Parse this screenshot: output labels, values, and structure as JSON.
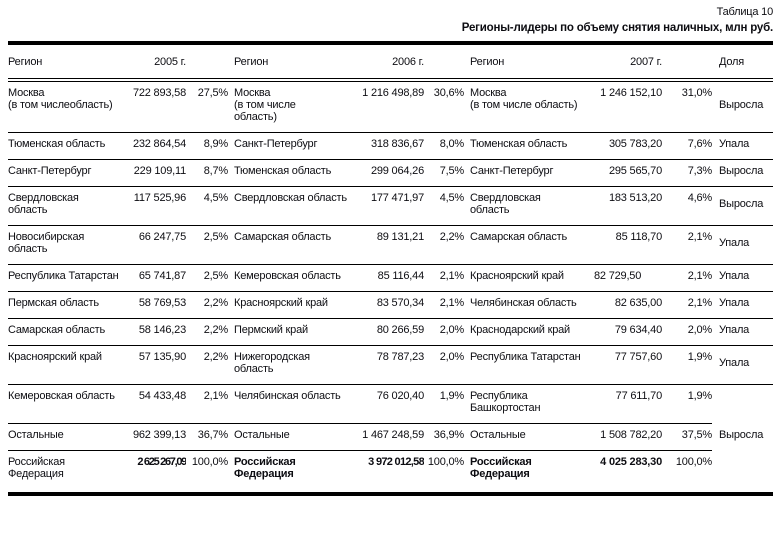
{
  "page": {
    "table_number": "Таблица 10",
    "table_title": "Регионы-лидеры по объему снятия наличных, млн руб."
  },
  "colors": {
    "text": "#0d0d12",
    "border": "#000000",
    "background": "#ffffff"
  },
  "table": {
    "headers": {
      "region1": "Регион",
      "year1": "2005 г.",
      "region2": "Регион",
      "year2": "2006 г.",
      "region3": "Регион",
      "year3": "2007 г.",
      "share": "Доля"
    },
    "rows": [
      {
        "r1": "Москва\n(в том числеобласть)",
        "v1": "722 893,58",
        "p1": "27,5%",
        "r2": "Москва\n(в том числе\nобласть)",
        "v2": "1 216 498,89",
        "p2": "30,6%",
        "r3": "Москва\n(в том числе область)",
        "v3": "1 246 152,10",
        "p3": "31,0%",
        "d": "Выросла"
      },
      {
        "r1": "Тюменская область",
        "v1": "232 864,54",
        "p1": "8,9%",
        "r2": "Санкт-Петербург",
        "v2": "318 836,67",
        "p2": "8,0%",
        "r3": "Тюменская область",
        "v3": "305 783,20",
        "p3": "7,6%",
        "d": "Упала"
      },
      {
        "r1": "Санкт-Петербург",
        "v1": "229 109,11",
        "p1": "8,7%",
        "r2": "Тюменская область",
        "v2": "299 064,26",
        "p2": "7,5%",
        "r3": "Санкт-Петербург",
        "v3": "295 565,70",
        "p3": "7,3%",
        "d": "Выросла"
      },
      {
        "r1": "Свердловская\nобласть",
        "v1": "117 525,96",
        "p1": "4,5%",
        "r2": "Свердловская область",
        "v2": "177 471,97",
        "p2": "4,5%",
        "r3": "Свердловская\nобласть",
        "v3": "183 513,20",
        "p3": "4,6%",
        "d": "Выросла"
      },
      {
        "r1": "Новосибирская\nобласть",
        "v1": "66 247,75",
        "p1": "2,5%",
        "r2": "Самарская область",
        "v2": "89 131,21",
        "p2": "2,2%",
        "r3": "Самарская область",
        "v3": "85 118,70",
        "p3": "2,1%",
        "d": "Упала"
      },
      {
        "r1": "Республика Татарстан",
        "v1": "65 741,87",
        "p1": "2,5%",
        "r2": "Кемеровская область",
        "v2": "85 116,44",
        "p2": "2,1%",
        "r3": "Красноярский край",
        "v3": "82 729,50",
        "p3": "2,1%",
        "d": "Упала"
      },
      {
        "r1": "Пермская область",
        "v1": "58 769,53",
        "p1": "2,2%",
        "r2": "Красноярский край",
        "v2": "83 570,34",
        "p2": "2,1%",
        "r3": "Челябинская область",
        "v3": "82 635,00",
        "p3": "2,1%",
        "d": "Упала"
      },
      {
        "r1": "Самарская область",
        "v1": "58 146,23",
        "p1": "2,2%",
        "r2": "Пермский край",
        "v2": "80 266,59",
        "p2": "2,0%",
        "r3": "Краснодарский край",
        "v3": "79 634,40",
        "p3": "2,0%",
        "d": "Упала"
      },
      {
        "r1": "Красноярский край",
        "v1": "57 135,90",
        "p1": "2,2%",
        "r2": "Нижегородская\nобласть",
        "v2": "78 787,23",
        "p2": "2,0%",
        "r3": "Республика Татарстан",
        "v3": "77 757,60",
        "p3": "1,9%",
        "d": "Упала"
      },
      {
        "r1": "Кемеровская область",
        "v1": "54 433,48",
        "p1": "2,1%",
        "r2": "Челябинская область",
        "v2": "76 020,40",
        "p2": "1,9%",
        "r3": "Республика\nБашкортостан",
        "v3": "77 611,70",
        "p3": "1,9%",
        "d": ""
      },
      {
        "r1": "Остальные",
        "v1": "962 399,13",
        "p1": "36,7%",
        "r2": "Остальные",
        "v2": "1 467 248,59",
        "p2": "36,9%",
        "r3": "Остальные",
        "v3": "1 508 782,20",
        "p3": "37,5%",
        "d": "Выросла"
      },
      {
        "r1": "Российская\nФедерация",
        "v1": "2 625 267,09",
        "p1": "100,0%",
        "r2": "Российская\nФедерация",
        "v2": "3 972 012,58",
        "p2": "100,0%",
        "r3": "Российская\nФедерация",
        "v3": "4 025 283,30",
        "p3": "100,0%",
        "d": ""
      }
    ]
  }
}
